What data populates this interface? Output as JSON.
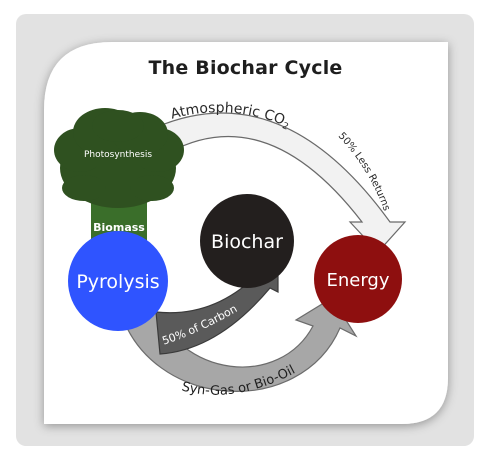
{
  "title": "The Biochar Cycle",
  "nodes": {
    "pyrolysis": {
      "label": "Pyrolysis",
      "color": "#2f54ff"
    },
    "biochar": {
      "label": "Biochar",
      "color": "#231f1e"
    },
    "energy": {
      "label": "Energy",
      "color": "#8e0f0f"
    }
  },
  "tree": {
    "photosynthesis_label": "Photosynthesis",
    "biomass_label": "Biomass",
    "foliage_color": "#2f5120",
    "trunk_color": "#3a6e2a"
  },
  "arrows": {
    "atmospheric_co2": {
      "text": "Atmospheric CO",
      "subscript": "2",
      "fill": "#f2f2f2"
    },
    "less_returns": {
      "text": "50% Less Returns",
      "fill": "#f2f2f2"
    },
    "carbon": {
      "text": "50% of Carbon",
      "fill": "#555555"
    },
    "syngas": {
      "text": "Syn-Gas or Bio-Oil",
      "fill": "#9c9c9c"
    }
  }
}
